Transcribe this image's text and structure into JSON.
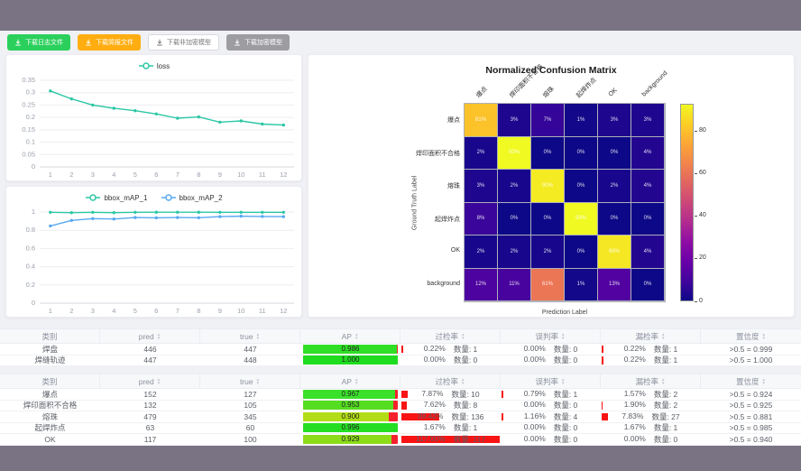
{
  "toolbar": {
    "buttons": [
      {
        "label": "下载日志文件",
        "variant": "green",
        "icon": "download-icon"
      },
      {
        "label": "下载简报文件",
        "variant": "orange",
        "icon": "download-icon"
      },
      {
        "label": "下载非加密模型",
        "variant": "white",
        "icon": "download-icon"
      },
      {
        "label": "下载加密模型",
        "variant": "gray",
        "icon": "download-icon"
      }
    ]
  },
  "chart_data": [
    {
      "type": "line",
      "legend_position": "top",
      "grid": true,
      "x": [
        1,
        2,
        3,
        4,
        5,
        6,
        7,
        8,
        9,
        10,
        11,
        12
      ],
      "series": [
        {
          "name": "loss",
          "color": "#2cc7a5",
          "values": [
            0.307,
            0.275,
            0.25,
            0.237,
            0.227,
            0.214,
            0.197,
            0.202,
            0.181,
            0.186,
            0.173,
            0.169
          ]
        }
      ],
      "ylim": [
        0,
        0.35
      ],
      "yticks": [
        0,
        0.05,
        0.1,
        0.15,
        0.2,
        0.25,
        0.3,
        0.35
      ]
    },
    {
      "type": "line",
      "legend_position": "top",
      "grid": true,
      "x": [
        1,
        2,
        3,
        4,
        5,
        6,
        7,
        8,
        9,
        10,
        11,
        12
      ],
      "series": [
        {
          "name": "bbox_mAP_1",
          "color": "#2cc7a5",
          "values": [
            0.997,
            0.993,
            0.997,
            0.993,
            0.997,
            0.998,
            0.998,
            0.998,
            0.997,
            0.997,
            0.997,
            0.997
          ]
        },
        {
          "name": "bbox_mAP_2",
          "color": "#58a8f2",
          "values": [
            0.848,
            0.908,
            0.928,
            0.924,
            0.94,
            0.937,
            0.94,
            0.938,
            0.95,
            0.954,
            0.951,
            0.95
          ]
        }
      ],
      "ylim": [
        0,
        1
      ],
      "yticks": [
        0,
        0.2,
        0.4,
        0.6,
        0.8,
        1
      ]
    },
    {
      "type": "heatmap",
      "title": "Normalized Confusion Matrix",
      "xlabel": "Prediction Label",
      "ylabel": "Ground Truth Label",
      "labels": [
        "爆点",
        "焊印面积不合格",
        "熔珠",
        "起焊炸点",
        "OK",
        "background"
      ],
      "matrix": [
        [
          81,
          3,
          7,
          1,
          3,
          3
        ],
        [
          2,
          93,
          0,
          0,
          0,
          4
        ],
        [
          3,
          2,
          90,
          0,
          2,
          4
        ],
        [
          8,
          0,
          0,
          93,
          0,
          0
        ],
        [
          2,
          2,
          2,
          0,
          89,
          4
        ],
        [
          12,
          11,
          61,
          1,
          13,
          0
        ]
      ],
      "unit": "%",
      "vmax": 93,
      "colorbar_ticks": [
        0,
        20,
        40,
        60,
        80
      ],
      "colormap": "plasma"
    }
  ],
  "tables": [
    {
      "headers": [
        {
          "label": "类别",
          "sortable": false
        },
        {
          "label": "pred",
          "sortable": true
        },
        {
          "label": "true",
          "sortable": true
        },
        {
          "label": "AP",
          "sortable": true
        },
        {
          "label": "过检率",
          "sortable": true
        },
        {
          "label": "误判率",
          "sortable": true
        },
        {
          "label": "漏检率",
          "sortable": true
        },
        {
          "label": "置信度",
          "sortable": true
        }
      ],
      "rows": [
        {
          "cls": "焊盘",
          "pred": "446",
          "true": "447",
          "ap": "0.986",
          "ap_pct": 98.6,
          "ap_color": "#2fdf26",
          "over": {
            "rate": "0.22%",
            "count": "数量: 1",
            "pct": 0.22
          },
          "mis": {
            "rate": "0.00%",
            "count": "数量: 0",
            "pct": 0
          },
          "miss": {
            "rate": "0.22%",
            "count": "数量: 1",
            "pct": 0.22
          },
          "conf": ">0.5 = 0.999"
        },
        {
          "cls": "焊缝轨迹",
          "pred": "447",
          "true": "448",
          "ap": "1.000",
          "ap_pct": 100,
          "ap_color": "#1edd1e",
          "over": {
            "rate": "0.00%",
            "count": "数量: 0",
            "pct": 0
          },
          "mis": {
            "rate": "0.00%",
            "count": "数量: 0",
            "pct": 0
          },
          "miss": {
            "rate": "0.22%",
            "count": "数量: 1",
            "pct": 0.22
          },
          "conf": ">0.5 = 1.000"
        }
      ]
    },
    {
      "headers": [
        {
          "label": "类别",
          "sortable": false
        },
        {
          "label": "pred",
          "sortable": true
        },
        {
          "label": "true",
          "sortable": true
        },
        {
          "label": "AP",
          "sortable": true
        },
        {
          "label": "过检率",
          "sortable": true
        },
        {
          "label": "误判率",
          "sortable": true
        },
        {
          "label": "漏检率",
          "sortable": true
        },
        {
          "label": "置信度",
          "sortable": true
        }
      ],
      "rows": [
        {
          "cls": "爆点",
          "pred": "152",
          "true": "127",
          "ap": "0.967",
          "ap_pct": 96.7,
          "ap_color": "#3be02a",
          "over": {
            "rate": "7.87%",
            "count": "数量: 10",
            "pct": 7.87
          },
          "mis": {
            "rate": "0.79%",
            "count": "数量: 1",
            "pct": 0.79
          },
          "miss": {
            "rate": "1.57%",
            "count": "数量: 2",
            "pct": 1.57
          },
          "conf": ">0.5 = 0.924"
        },
        {
          "cls": "焊印面积不合格",
          "pred": "132",
          "true": "105",
          "ap": "0.953",
          "ap_pct": 95.3,
          "ap_color": "#55dd20",
          "over": {
            "rate": "7.62%",
            "count": "数量: 8",
            "pct": 7.62
          },
          "mis": {
            "rate": "0.00%",
            "count": "数量: 0",
            "pct": 0
          },
          "miss": {
            "rate": "1.90%",
            "count": "数量: 2",
            "pct": 1.9
          },
          "conf": ">0.5 = 0.925"
        },
        {
          "cls": "熔珠",
          "pred": "479",
          "true": "345",
          "ap": "0.900",
          "ap_pct": 90,
          "ap_color": "#b2dd16",
          "over": {
            "rate": "39.42%",
            "count": "数量: 136",
            "pct": 39.42
          },
          "mis": {
            "rate": "1.16%",
            "count": "数量: 4",
            "pct": 1.16
          },
          "miss": {
            "rate": "7.83%",
            "count": "数量: 27",
            "pct": 7.83
          },
          "conf": ">0.5 = 0.881"
        },
        {
          "cls": "起焊炸点",
          "pred": "63",
          "true": "60",
          "ap": "0.996",
          "ap_pct": 99.6,
          "ap_color": "#25de23",
          "over": {
            "rate": "1.67%",
            "count": "数量: 1",
            "pct": 1.67
          },
          "mis": {
            "rate": "0.00%",
            "count": "数量: 0",
            "pct": 0
          },
          "miss": {
            "rate": "1.67%",
            "count": "数量: 1",
            "pct": 1.67
          },
          "conf": ">0.5 = 0.985"
        },
        {
          "cls": "OK",
          "pred": "117",
          "true": "100",
          "ap": "0.929",
          "ap_pct": 92.9,
          "ap_color": "#8cdc19",
          "over": {
            "rate": "117.00%",
            "count": "数量: 117",
            "pct": 117
          },
          "mis": {
            "rate": "0.00%",
            "count": "数量: 0",
            "pct": 0
          },
          "miss": {
            "rate": "0.00%",
            "count": "数量: 0",
            "pct": 0
          },
          "conf": ">0.5 = 0.940"
        }
      ]
    }
  ]
}
